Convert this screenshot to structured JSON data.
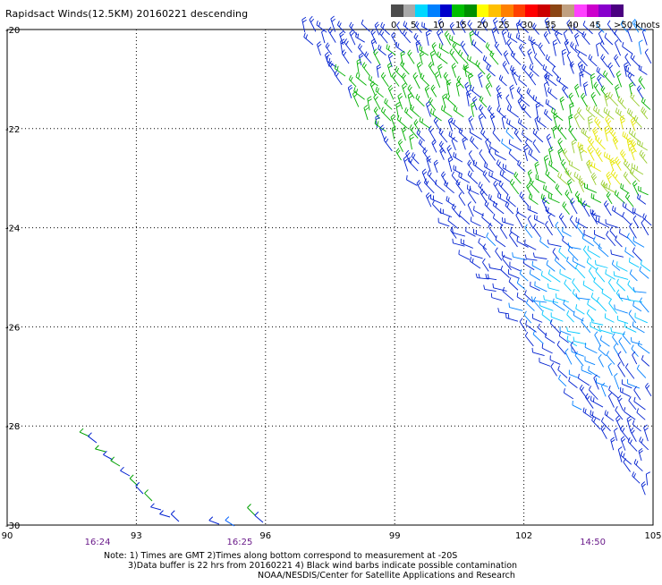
{
  "header": {
    "title": "Rapidsact Winds(12.5KM) 20160221 descending"
  },
  "legend": {
    "colors": [
      "#4c4c4c",
      "#a9a9a9",
      "#00d8ff",
      "#0080ff",
      "#0000cc",
      "#00c000",
      "#009000",
      "#ffff00",
      "#ffc000",
      "#ff8000",
      "#ff4000",
      "#ff0000",
      "#cc0000",
      "#8b4513",
      "#c0a080",
      "#ff40ff",
      "#cc00cc",
      "#8800cc",
      "#4a0080"
    ],
    "labels": [
      "0",
      "5",
      "10",
      "15",
      "20",
      "25",
      "30",
      "35",
      "40",
      "45",
      ">50 knots"
    ]
  },
  "map": {
    "longitude_ticks": [
      "90",
      "93",
      "96",
      "99",
      "102",
      "105"
    ],
    "latitude_ticks": [
      "-20",
      "-22",
      "-24",
      "-26",
      "-28",
      "-30"
    ],
    "time_labels": [
      {
        "text": "16:24",
        "lon": 92.1
      },
      {
        "text": "16:25",
        "lon": 95.4
      },
      {
        "text": "14:50",
        "lon": 103.6
      }
    ],
    "swath": {
      "type": "wind barbs",
      "extent_description_visible": "swath covering the upper-right triangular region of the map",
      "dominant_colors": [
        "#0000cc",
        "#0080ff",
        "#00d8ff",
        "#00c000",
        "#ffff00"
      ]
    }
  },
  "notes": {
    "line1": "Note: 1) Times are GMT 2)Times along bottom correspond to measurement at -20S",
    "line2": "3)Data buffer is 22 hrs from 20160221 4) Black wind barbs indicate possible contamination",
    "line3": "NOAA/NESDIS/Center for Satellite Applications and Research"
  }
}
